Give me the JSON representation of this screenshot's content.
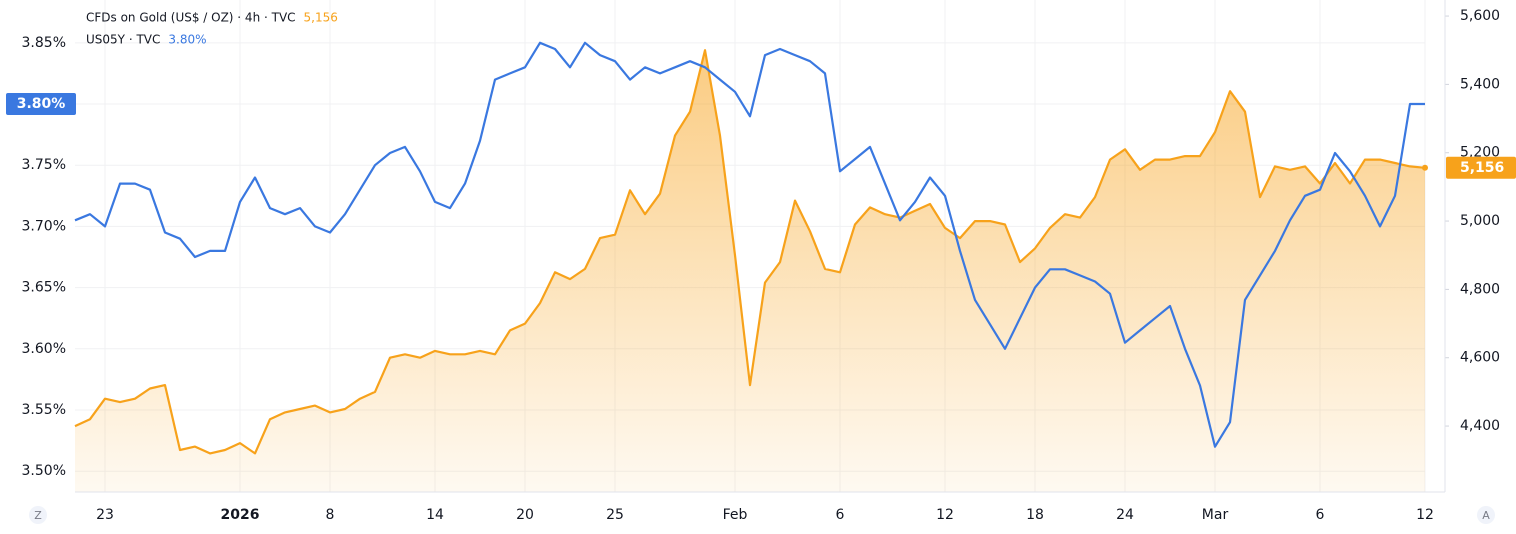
{
  "chart_data": {
    "type": "line",
    "categories": [
      null,
      null,
      "23",
      null,
      null,
      null,
      null,
      null,
      null,
      null,
      null,
      "2026",
      null,
      null,
      null,
      null,
      null,
      "8",
      null,
      null,
      null,
      null,
      null,
      null,
      "14",
      null,
      null,
      null,
      null,
      null,
      "20",
      null,
      null,
      null,
      null,
      null,
      "25",
      null,
      null,
      null,
      null,
      null,
      null,
      null,
      "Feb",
      null,
      null,
      null,
      null,
      null,
      null,
      "6",
      null,
      null,
      null,
      null,
      null,
      null,
      "12",
      null,
      null,
      null,
      null,
      null,
      "18",
      null,
      null,
      null,
      null,
      null,
      "24",
      null,
      null,
      null,
      null,
      null,
      "Mar",
      null,
      null,
      null,
      null,
      null,
      null,
      "6",
      null,
      null,
      null,
      null,
      null,
      null,
      "12"
    ],
    "series": [
      {
        "name": "CFDs on Gold (US$ / OZ) · 4h · TVC",
        "color": "#f7a21b",
        "axis": "y2",
        "last_label": "5,156",
        "values": [
          4400,
          4420,
          4480,
          4470,
          4480,
          4510,
          4520,
          4330,
          4340,
          4320,
          4330,
          4350,
          4320,
          4420,
          4440,
          4450,
          4460,
          4440,
          4450,
          4480,
          4500,
          4600,
          4610,
          4600,
          4620,
          4610,
          4610,
          4620,
          4610,
          4680,
          4700,
          4760,
          4850,
          4830,
          4860,
          4950,
          4960,
          5090,
          5020,
          5080,
          5250,
          5320,
          5500,
          5250,
          4900,
          4520,
          4820,
          4880,
          5060,
          4970,
          4860,
          4850,
          4990,
          5040,
          5020,
          5010,
          5030,
          5050,
          4980,
          4950,
          5000,
          5000,
          4990,
          4880,
          4920,
          4980,
          5020,
          5010,
          5070,
          5180,
          5210,
          5150,
          5180,
          5180,
          5190,
          5190,
          5260,
          5380,
          5320,
          5070,
          5160,
          5150,
          5160,
          5110,
          5170,
          5110,
          5180,
          5180,
          5170,
          5160,
          5156
        ]
      },
      {
        "name": "US05Y · TVC",
        "color": "#3a78e0",
        "axis": "y",
        "last_label": "3.80%",
        "values": [
          3.705,
          3.71,
          3.7,
          3.735,
          3.735,
          3.73,
          3.695,
          3.69,
          3.675,
          3.68,
          3.68,
          3.72,
          3.74,
          3.715,
          3.71,
          3.715,
          3.7,
          3.695,
          3.71,
          3.73,
          3.75,
          3.76,
          3.765,
          3.745,
          3.72,
          3.715,
          3.735,
          3.77,
          3.82,
          3.825,
          3.83,
          3.85,
          3.845,
          3.83,
          3.85,
          3.84,
          3.835,
          3.82,
          3.83,
          3.825,
          3.83,
          3.835,
          3.83,
          3.82,
          3.81,
          3.79,
          3.84,
          3.845,
          3.84,
          3.835,
          3.825,
          3.745,
          3.755,
          3.765,
          3.735,
          3.705,
          3.72,
          3.74,
          3.725,
          3.68,
          3.64,
          3.62,
          3.6,
          3.625,
          3.65,
          3.665,
          3.665,
          3.66,
          3.655,
          3.645,
          3.605,
          3.615,
          3.625,
          3.635,
          3.6,
          3.57,
          3.52,
          3.54,
          3.64,
          3.66,
          3.68,
          3.705,
          3.725,
          3.73,
          3.76,
          3.745,
          3.725,
          3.7,
          3.725,
          3.8,
          3.8
        ]
      }
    ],
    "ylim": [
      3.483,
      3.885
    ],
    "yticks": [
      {
        "value": 3.5,
        "label": "3.50%"
      },
      {
        "value": 3.55,
        "label": "3.55%"
      },
      {
        "value": 3.6,
        "label": "3.60%"
      },
      {
        "value": 3.65,
        "label": "3.65%"
      },
      {
        "value": 3.7,
        "label": "3.70%"
      },
      {
        "value": 3.75,
        "label": "3.75%"
      },
      {
        "value": 3.8,
        "label": "3.80%"
      },
      {
        "value": 3.85,
        "label": "3.85%"
      }
    ],
    "y2lim": [
      4207,
      5647
    ],
    "y2ticks": [
      {
        "value": 4400,
        "label": "4,400"
      },
      {
        "value": 4600,
        "label": "4,600"
      },
      {
        "value": 4800,
        "label": "4,800"
      },
      {
        "value": 5000,
        "label": "5,000"
      },
      {
        "value": 5200,
        "label": "5,200"
      },
      {
        "value": 5400,
        "label": "5,400"
      },
      {
        "value": 5600,
        "label": "5,600"
      }
    ],
    "grid": true,
    "buttons": [
      "Z",
      "A"
    ]
  }
}
